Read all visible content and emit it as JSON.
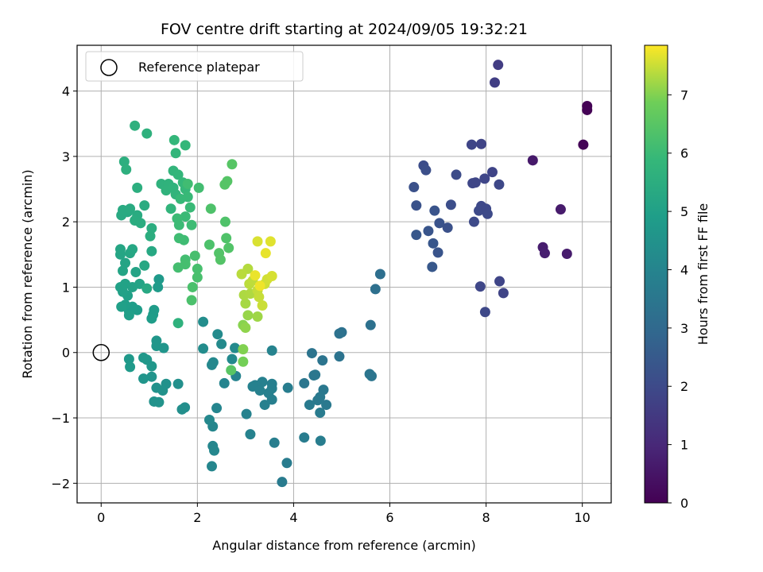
{
  "chart_data": {
    "type": "scatter",
    "title": "FOV centre drift starting at 2024/09/05 19:32:21",
    "xlabel": "Angular distance from reference (arcmin)",
    "ylabel": "Rotation from reference (arcmin)",
    "colorbar_label": "Hours from first FF file",
    "colormap": "viridis",
    "xlim": [
      -0.5,
      10.6
    ],
    "ylim": [
      -2.3,
      4.7
    ],
    "clim": [
      0,
      7.85
    ],
    "xticks": [
      0,
      2,
      4,
      6,
      8,
      10
    ],
    "yticks": [
      -2,
      -1,
      0,
      1,
      2,
      3,
      4
    ],
    "cticks": [
      0,
      1,
      2,
      3,
      4,
      5,
      6,
      7
    ],
    "grid": true,
    "legend": {
      "position": "top-left",
      "entries": [
        {
          "label": "Reference platepar",
          "marker": "open-circle"
        }
      ]
    },
    "reference_point": {
      "x": 0,
      "y": 0
    },
    "points": [
      {
        "x": 10.1,
        "y": 3.77,
        "h": 0.02
      },
      {
        "x": 10.1,
        "y": 3.71,
        "h": 0.04
      },
      {
        "x": 10.02,
        "y": 3.18,
        "h": 0.08
      },
      {
        "x": 8.97,
        "y": 2.94,
        "h": 0.6
      },
      {
        "x": 9.55,
        "y": 2.19,
        "h": 0.65
      },
      {
        "x": 9.18,
        "y": 1.61,
        "h": 0.7
      },
      {
        "x": 9.22,
        "y": 1.52,
        "h": 0.75
      },
      {
        "x": 9.68,
        "y": 1.51,
        "h": 0.68
      },
      {
        "x": 8.25,
        "y": 4.4,
        "h": 1.6
      },
      {
        "x": 8.18,
        "y": 4.13,
        "h": 1.65
      },
      {
        "x": 7.9,
        "y": 3.19,
        "h": 1.8
      },
      {
        "x": 7.7,
        "y": 3.18,
        "h": 1.85
      },
      {
        "x": 8.13,
        "y": 2.76,
        "h": 1.82
      },
      {
        "x": 7.97,
        "y": 2.66,
        "h": 1.88
      },
      {
        "x": 7.72,
        "y": 2.59,
        "h": 1.9
      },
      {
        "x": 7.78,
        "y": 2.6,
        "h": 1.87
      },
      {
        "x": 8.27,
        "y": 2.57,
        "h": 1.92
      },
      {
        "x": 7.9,
        "y": 2.24,
        "h": 1.95
      },
      {
        "x": 7.85,
        "y": 2.17,
        "h": 1.98
      },
      {
        "x": 8.0,
        "y": 2.2,
        "h": 1.97
      },
      {
        "x": 8.03,
        "y": 2.12,
        "h": 1.99
      },
      {
        "x": 7.75,
        "y": 2.0,
        "h": 2.0
      },
      {
        "x": 7.88,
        "y": 1.01,
        "h": 1.9
      },
      {
        "x": 8.28,
        "y": 1.09,
        "h": 1.85
      },
      {
        "x": 8.36,
        "y": 0.91,
        "h": 1.8
      },
      {
        "x": 7.98,
        "y": 0.62,
        "h": 1.92
      },
      {
        "x": 6.7,
        "y": 2.86,
        "h": 2.1
      },
      {
        "x": 6.75,
        "y": 2.79,
        "h": 2.15
      },
      {
        "x": 7.38,
        "y": 2.72,
        "h": 2.05
      },
      {
        "x": 6.5,
        "y": 2.53,
        "h": 2.2
      },
      {
        "x": 7.27,
        "y": 2.26,
        "h": 2.12
      },
      {
        "x": 6.55,
        "y": 2.25,
        "h": 2.25
      },
      {
        "x": 6.93,
        "y": 2.17,
        "h": 2.3
      },
      {
        "x": 7.03,
        "y": 1.98,
        "h": 2.28
      },
      {
        "x": 7.2,
        "y": 1.91,
        "h": 2.22
      },
      {
        "x": 6.8,
        "y": 1.86,
        "h": 2.35
      },
      {
        "x": 6.55,
        "y": 1.8,
        "h": 2.4
      },
      {
        "x": 6.9,
        "y": 1.67,
        "h": 2.38
      },
      {
        "x": 7.0,
        "y": 1.53,
        "h": 2.32
      },
      {
        "x": 6.88,
        "y": 1.31,
        "h": 2.45
      },
      {
        "x": 5.8,
        "y": 1.2,
        "h": 3.2
      },
      {
        "x": 5.7,
        "y": 0.97,
        "h": 3.25
      },
      {
        "x": 5.6,
        "y": 0.42,
        "h": 3.3
      },
      {
        "x": 5.0,
        "y": 0.31,
        "h": 3.3
      },
      {
        "x": 4.95,
        "y": 0.29,
        "h": 3.32
      },
      {
        "x": 4.95,
        "y": -0.06,
        "h": 3.35
      },
      {
        "x": 4.38,
        "y": -0.01,
        "h": 3.4
      },
      {
        "x": 4.6,
        "y": -0.12,
        "h": 3.38
      },
      {
        "x": 5.58,
        "y": -0.33,
        "h": 3.45
      },
      {
        "x": 5.62,
        "y": -0.36,
        "h": 3.43
      },
      {
        "x": 4.42,
        "y": -0.35,
        "h": 3.5
      },
      {
        "x": 4.45,
        "y": -0.34,
        "h": 3.52
      },
      {
        "x": 4.22,
        "y": -0.47,
        "h": 3.48
      },
      {
        "x": 4.62,
        "y": -0.57,
        "h": 3.55
      },
      {
        "x": 4.55,
        "y": -0.68,
        "h": 3.6
      },
      {
        "x": 4.5,
        "y": -0.73,
        "h": 3.58
      },
      {
        "x": 4.33,
        "y": -0.8,
        "h": 3.62
      },
      {
        "x": 4.68,
        "y": -0.8,
        "h": 3.57
      },
      {
        "x": 4.55,
        "y": -0.92,
        "h": 3.65
      },
      {
        "x": 4.22,
        "y": -1.3,
        "h": 3.7
      },
      {
        "x": 4.56,
        "y": -1.35,
        "h": 3.72
      },
      {
        "x": 3.88,
        "y": -0.54,
        "h": 3.75
      },
      {
        "x": 3.86,
        "y": -1.69,
        "h": 3.68
      },
      {
        "x": 3.76,
        "y": -1.98,
        "h": 3.66
      },
      {
        "x": 3.6,
        "y": -1.38,
        "h": 3.78
      },
      {
        "x": 3.55,
        "y": -0.48,
        "h": 3.8
      },
      {
        "x": 3.55,
        "y": -0.55,
        "h": 3.82
      },
      {
        "x": 3.48,
        "y": -0.62,
        "h": 3.85
      },
      {
        "x": 3.55,
        "y": -0.72,
        "h": 3.83
      },
      {
        "x": 3.4,
        "y": -0.8,
        "h": 3.84
      },
      {
        "x": 3.35,
        "y": -0.45,
        "h": 3.86
      },
      {
        "x": 3.2,
        "y": -0.5,
        "h": 3.88
      },
      {
        "x": 3.15,
        "y": -0.52,
        "h": 3.9
      },
      {
        "x": 3.3,
        "y": -0.58,
        "h": 3.87
      },
      {
        "x": 3.1,
        "y": -1.25,
        "h": 3.92
      },
      {
        "x": 3.02,
        "y": -0.94,
        "h": 3.93
      },
      {
        "x": 3.55,
        "y": 0.03,
        "h": 3.95
      },
      {
        "x": 2.8,
        "y": -0.36,
        "h": 3.97
      },
      {
        "x": 2.56,
        "y": -0.47,
        "h": 4.0
      },
      {
        "x": 2.4,
        "y": -0.85,
        "h": 4.02
      },
      {
        "x": 2.32,
        "y": -1.13,
        "h": 4.05
      },
      {
        "x": 2.32,
        "y": -1.43,
        "h": 4.07
      },
      {
        "x": 2.35,
        "y": -1.5,
        "h": 4.1
      },
      {
        "x": 2.3,
        "y": -1.74,
        "h": 4.08
      },
      {
        "x": 2.25,
        "y": -1.03,
        "h": 4.12
      },
      {
        "x": 2.33,
        "y": -0.15,
        "h": 4.15
      },
      {
        "x": 2.3,
        "y": -0.19,
        "h": 4.13
      },
      {
        "x": 2.72,
        "y": -0.1,
        "h": 4.18
      },
      {
        "x": 2.78,
        "y": 0.07,
        "h": 4.2
      },
      {
        "x": 2.5,
        "y": 0.13,
        "h": 4.22
      },
      {
        "x": 2.42,
        "y": 0.28,
        "h": 4.25
      },
      {
        "x": 2.12,
        "y": 0.06,
        "h": 4.28
      },
      {
        "x": 2.12,
        "y": 0.47,
        "h": 4.3
      },
      {
        "x": 1.74,
        "y": -0.84,
        "h": 4.35
      },
      {
        "x": 1.68,
        "y": -0.87,
        "h": 4.37
      },
      {
        "x": 1.6,
        "y": -0.48,
        "h": 4.4
      },
      {
        "x": 1.35,
        "y": -0.48,
        "h": 4.45
      },
      {
        "x": 1.28,
        "y": -0.58,
        "h": 4.48
      },
      {
        "x": 1.15,
        "y": -0.54,
        "h": 4.5
      },
      {
        "x": 1.2,
        "y": -0.76,
        "h": 4.52
      },
      {
        "x": 1.1,
        "y": -0.75,
        "h": 4.5
      },
      {
        "x": 1.05,
        "y": -0.37,
        "h": 4.55
      },
      {
        "x": 0.88,
        "y": -0.4,
        "h": 4.58
      },
      {
        "x": 1.3,
        "y": 0.07,
        "h": 4.6
      },
      {
        "x": 1.15,
        "y": 0.1,
        "h": 4.62
      },
      {
        "x": 1.15,
        "y": 0.18,
        "h": 4.64
      },
      {
        "x": 0.95,
        "y": -0.11,
        "h": 4.66
      },
      {
        "x": 1.05,
        "y": -0.21,
        "h": 4.65
      },
      {
        "x": 0.88,
        "y": -0.08,
        "h": 4.68
      },
      {
        "x": 0.58,
        "y": -0.1,
        "h": 4.72
      },
      {
        "x": 0.6,
        "y": -0.22,
        "h": 4.75
      },
      {
        "x": 1.2,
        "y": 1.12,
        "h": 4.78
      },
      {
        "x": 1.18,
        "y": 1.0,
        "h": 4.8
      },
      {
        "x": 1.1,
        "y": 0.65,
        "h": 4.82
      },
      {
        "x": 1.08,
        "y": 0.58,
        "h": 4.84
      },
      {
        "x": 1.05,
        "y": 0.52,
        "h": 4.86
      },
      {
        "x": 0.75,
        "y": 0.65,
        "h": 4.88
      },
      {
        "x": 0.65,
        "y": 0.7,
        "h": 4.9
      },
      {
        "x": 0.58,
        "y": 0.63,
        "h": 4.92
      },
      {
        "x": 0.58,
        "y": 0.57,
        "h": 4.94
      },
      {
        "x": 0.5,
        "y": 0.73,
        "h": 4.96
      },
      {
        "x": 0.42,
        "y": 0.7,
        "h": 4.98
      },
      {
        "x": 0.55,
        "y": 0.87,
        "h": 5.0
      },
      {
        "x": 0.45,
        "y": 0.93,
        "h": 5.02
      },
      {
        "x": 0.4,
        "y": 1.0,
        "h": 5.04
      },
      {
        "x": 0.5,
        "y": 1.05,
        "h": 5.06
      },
      {
        "x": 0.65,
        "y": 1.0,
        "h": 5.08
      },
      {
        "x": 0.8,
        "y": 1.05,
        "h": 5.1
      },
      {
        "x": 0.72,
        "y": 1.23,
        "h": 5.12
      },
      {
        "x": 0.45,
        "y": 1.25,
        "h": 5.14
      },
      {
        "x": 0.5,
        "y": 1.37,
        "h": 5.16
      },
      {
        "x": 0.4,
        "y": 1.5,
        "h": 5.18
      },
      {
        "x": 0.4,
        "y": 1.58,
        "h": 5.2
      },
      {
        "x": 0.6,
        "y": 1.52,
        "h": 5.22
      },
      {
        "x": 0.65,
        "y": 1.58,
        "h": 5.24
      },
      {
        "x": 0.9,
        "y": 1.33,
        "h": 5.26
      },
      {
        "x": 1.05,
        "y": 1.55,
        "h": 5.28
      },
      {
        "x": 0.95,
        "y": 0.98,
        "h": 5.3
      },
      {
        "x": 0.55,
        "y": 2.15,
        "h": 5.32
      },
      {
        "x": 0.42,
        "y": 2.1,
        "h": 5.34
      },
      {
        "x": 0.45,
        "y": 2.18,
        "h": 5.36
      },
      {
        "x": 0.6,
        "y": 2.2,
        "h": 5.38
      },
      {
        "x": 0.75,
        "y": 2.1,
        "h": 5.4
      },
      {
        "x": 0.9,
        "y": 2.25,
        "h": 5.42
      },
      {
        "x": 0.7,
        "y": 2.02,
        "h": 5.44
      },
      {
        "x": 0.82,
        "y": 1.98,
        "h": 5.46
      },
      {
        "x": 1.05,
        "y": 1.9,
        "h": 5.48
      },
      {
        "x": 1.02,
        "y": 1.78,
        "h": 5.5
      },
      {
        "x": 0.75,
        "y": 2.52,
        "h": 5.52
      },
      {
        "x": 0.48,
        "y": 2.92,
        "h": 5.54
      },
      {
        "x": 0.52,
        "y": 2.8,
        "h": 5.56
      },
      {
        "x": 0.7,
        "y": 3.47,
        "h": 5.6
      },
      {
        "x": 0.95,
        "y": 3.35,
        "h": 5.62
      },
      {
        "x": 1.6,
        "y": 0.45,
        "h": 5.64
      },
      {
        "x": 1.25,
        "y": 2.58,
        "h": 5.66
      },
      {
        "x": 1.4,
        "y": 2.58,
        "h": 5.68
      },
      {
        "x": 1.35,
        "y": 2.48,
        "h": 5.7
      },
      {
        "x": 1.5,
        "y": 2.52,
        "h": 5.72
      },
      {
        "x": 1.55,
        "y": 2.42,
        "h": 5.74
      },
      {
        "x": 1.45,
        "y": 2.2,
        "h": 5.76
      },
      {
        "x": 1.5,
        "y": 2.78,
        "h": 5.78
      },
      {
        "x": 1.6,
        "y": 2.72,
        "h": 5.8
      },
      {
        "x": 1.55,
        "y": 3.05,
        "h": 5.82
      },
      {
        "x": 1.52,
        "y": 3.25,
        "h": 5.84
      },
      {
        "x": 1.75,
        "y": 3.17,
        "h": 5.86
      },
      {
        "x": 1.7,
        "y": 2.6,
        "h": 5.88
      },
      {
        "x": 1.75,
        "y": 2.5,
        "h": 5.9
      },
      {
        "x": 1.65,
        "y": 2.35,
        "h": 5.92
      },
      {
        "x": 1.8,
        "y": 2.38,
        "h": 5.94
      },
      {
        "x": 1.85,
        "y": 2.22,
        "h": 5.96
      },
      {
        "x": 1.75,
        "y": 2.08,
        "h": 5.98
      },
      {
        "x": 1.58,
        "y": 2.05,
        "h": 6.0
      },
      {
        "x": 1.62,
        "y": 1.95,
        "h": 6.02
      },
      {
        "x": 1.88,
        "y": 1.95,
        "h": 6.04
      },
      {
        "x": 1.72,
        "y": 1.72,
        "h": 6.06
      },
      {
        "x": 1.62,
        "y": 1.75,
        "h": 6.08
      },
      {
        "x": 1.8,
        "y": 2.58,
        "h": 6.1
      },
      {
        "x": 2.03,
        "y": 2.52,
        "h": 6.12
      },
      {
        "x": 1.75,
        "y": 1.42,
        "h": 6.14
      },
      {
        "x": 1.6,
        "y": 1.3,
        "h": 6.16
      },
      {
        "x": 1.75,
        "y": 1.35,
        "h": 6.18
      },
      {
        "x": 1.95,
        "y": 1.48,
        "h": 6.2
      },
      {
        "x": 2.0,
        "y": 1.28,
        "h": 6.22
      },
      {
        "x": 2.0,
        "y": 1.15,
        "h": 6.24
      },
      {
        "x": 1.9,
        "y": 1.0,
        "h": 6.26
      },
      {
        "x": 1.88,
        "y": 0.8,
        "h": 6.28
      },
      {
        "x": 2.25,
        "y": 1.65,
        "h": 6.3
      },
      {
        "x": 2.28,
        "y": 2.2,
        "h": 6.32
      },
      {
        "x": 2.58,
        "y": 2.0,
        "h": 6.34
      },
      {
        "x": 2.6,
        "y": 1.75,
        "h": 6.36
      },
      {
        "x": 2.65,
        "y": 1.6,
        "h": 6.38
      },
      {
        "x": 2.45,
        "y": 1.52,
        "h": 6.4
      },
      {
        "x": 2.48,
        "y": 1.42,
        "h": 6.42
      },
      {
        "x": 2.62,
        "y": 2.62,
        "h": 6.44
      },
      {
        "x": 2.57,
        "y": 2.57,
        "h": 6.46
      },
      {
        "x": 2.72,
        "y": 2.88,
        "h": 6.48
      },
      {
        "x": 2.7,
        "y": -0.27,
        "h": 6.5
      },
      {
        "x": 2.95,
        "y": -0.14,
        "h": 6.9
      },
      {
        "x": 2.95,
        "y": 0.05,
        "h": 7.0
      },
      {
        "x": 2.95,
        "y": 0.42,
        "h": 7.05
      },
      {
        "x": 3.0,
        "y": 0.38,
        "h": 7.1
      },
      {
        "x": 3.05,
        "y": 0.57,
        "h": 7.15
      },
      {
        "x": 3.25,
        "y": 0.55,
        "h": 7.2
      },
      {
        "x": 3.0,
        "y": 0.75,
        "h": 7.25
      },
      {
        "x": 2.97,
        "y": 0.88,
        "h": 7.3
      },
      {
        "x": 3.1,
        "y": 0.9,
        "h": 7.32
      },
      {
        "x": 3.05,
        "y": 1.28,
        "h": 7.35
      },
      {
        "x": 2.92,
        "y": 1.2,
        "h": 7.38
      },
      {
        "x": 3.08,
        "y": 1.05,
        "h": 7.4
      },
      {
        "x": 3.15,
        "y": 1.1,
        "h": 7.42
      },
      {
        "x": 3.25,
        "y": 0.95,
        "h": 7.45
      },
      {
        "x": 3.28,
        "y": 0.85,
        "h": 7.47
      },
      {
        "x": 3.35,
        "y": 0.72,
        "h": 7.5
      },
      {
        "x": 3.4,
        "y": 1.05,
        "h": 7.52
      },
      {
        "x": 3.45,
        "y": 1.12,
        "h": 7.55
      },
      {
        "x": 3.55,
        "y": 1.17,
        "h": 7.58
      },
      {
        "x": 3.25,
        "y": 1.7,
        "h": 7.6
      },
      {
        "x": 3.52,
        "y": 1.7,
        "h": 7.65
      },
      {
        "x": 3.42,
        "y": 1.52,
        "h": 7.7
      },
      {
        "x": 3.2,
        "y": 1.18,
        "h": 7.72
      },
      {
        "x": 3.3,
        "y": 1.02,
        "h": 7.75
      }
    ]
  }
}
